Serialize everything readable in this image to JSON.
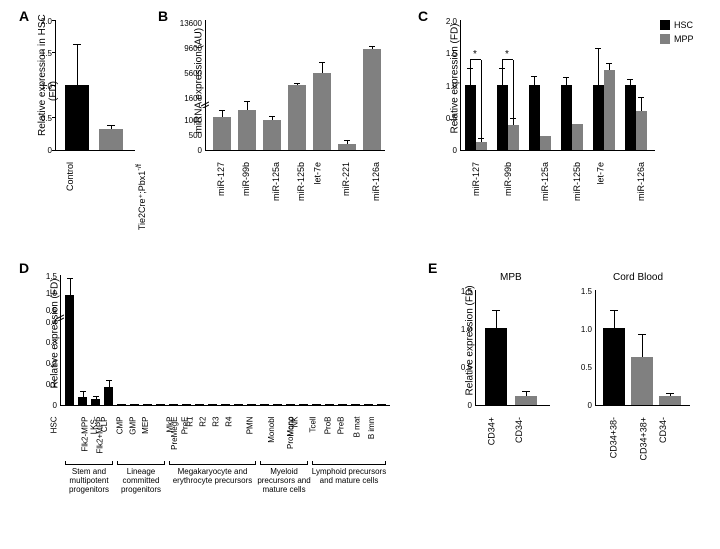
{
  "colors": {
    "black": "#000000",
    "gray": "#808080",
    "white": "#ffffff"
  },
  "panelA": {
    "label": "A",
    "ylabel": "Relative expression in HSC\n(FD)",
    "categories": [
      "Control",
      "Tie2Cre+;Pbx1-/f"
    ],
    "values": [
      1.0,
      0.32
    ],
    "errors": [
      0.62,
      0.05
    ],
    "colors": [
      "#000000",
      "#808080"
    ],
    "ylim": [
      0,
      2.0
    ],
    "yticks": [
      0,
      0.5,
      1.0,
      1.5,
      2.0
    ]
  },
  "panelB": {
    "label": "B",
    "ylabel": "miRNA expression (AU)",
    "categories": [
      "miR-127",
      "miR-99b",
      "miR-125a",
      "miR-125b",
      "let-7e",
      "miR-221",
      "miR-126a"
    ],
    "values": [
      1050,
      1300,
      950,
      3700,
      5600,
      180,
      9400
    ],
    "errors": [
      200,
      250,
      80,
      50,
      1500,
      80,
      200
    ],
    "colors": [
      "#808080",
      "#808080",
      "#808080",
      "#808080",
      "#808080",
      "#808080",
      "#808080"
    ],
    "ylim_lower": [
      0,
      1600
    ],
    "ylim_upper": [
      1600,
      13600
    ],
    "yticks_lower": [
      0,
      500,
      1000
    ],
    "yticks_upper": [
      1600,
      5600,
      9600,
      13600
    ]
  },
  "panelC": {
    "label": "C",
    "ylabel": "Relative expression (FD)",
    "legend": [
      "HSC",
      "MPP"
    ],
    "legend_colors": [
      "#000000",
      "#808080"
    ],
    "categories": [
      "miR-127",
      "miR-99b",
      "miR-125a",
      "miR-125b",
      "let-7e",
      "miR-126a"
    ],
    "hsc_values": [
      1.0,
      1.0,
      1.0,
      1.0,
      1.0,
      1.0
    ],
    "hsc_errors": [
      0.25,
      0.25,
      0.12,
      0.1,
      0.55,
      0.08
    ],
    "mpp_values": [
      0.12,
      0.38,
      0.22,
      0.4,
      1.23,
      0.6
    ],
    "mpp_errors": [
      0.05,
      0.1,
      0,
      0,
      0.1,
      0.2
    ],
    "ylim": [
      0,
      2.0
    ],
    "yticks": [
      0,
      0.5,
      1.0,
      1.5,
      2.0
    ],
    "significance": [
      {
        "group": 0,
        "star": "*"
      },
      {
        "group": 1,
        "star": "*"
      }
    ]
  },
  "panelD": {
    "label": "D",
    "ylabel": "Relative expression (FD)",
    "categories": [
      "HSC",
      "Flk2-MPP",
      "Flk2+MPP",
      "LKS-",
      "CLP",
      "CMP",
      "GMP",
      "MEP",
      "PreMegE",
      "MkP",
      "PreE",
      "R1",
      "R2",
      "R3",
      "R4",
      "PMN",
      "Monobl",
      "ProMono",
      "Mono",
      "NK",
      "Tcell",
      "ProB",
      "PreB",
      "B mat",
      "B imm"
    ],
    "values": [
      1.0,
      0.04,
      0.03,
      0.085,
      0.005,
      0.005,
      0.005,
      0.005,
      0.005,
      0.005,
      0.005,
      0.005,
      0.005,
      0.005,
      0.005,
      0.005,
      0.005,
      0.005,
      0.005,
      0.005,
      0.005,
      0.005,
      0.005,
      0.005,
      0.005
    ],
    "errors": [
      0.4,
      0.02,
      0.01,
      0.03,
      0,
      0,
      0,
      0,
      0,
      0,
      0,
      0,
      0,
      0,
      0,
      0,
      0,
      0,
      0,
      0,
      0,
      0,
      0,
      0,
      0
    ],
    "color": "#000000",
    "ylim_lower": [
      0,
      0.4
    ],
    "ylim_upper": [
      0.4,
      1.5
    ],
    "yticks_lower": [
      0,
      0.1,
      0.2,
      0.3,
      0.4
    ],
    "yticks_upper": [
      0.5,
      1.0,
      1.5
    ],
    "groups": [
      {
        "label": "Stem and multipotent progenitors",
        "range": [
          0,
          3
        ]
      },
      {
        "label": "Lineage committed progenitors",
        "range": [
          4,
          7
        ]
      },
      {
        "label": "Megakaryocyte and erythrocyte precursors",
        "range": [
          8,
          14
        ]
      },
      {
        "label": "Myeloid precursors and mature cells",
        "range": [
          15,
          18
        ]
      },
      {
        "label": "Lymphoid precursors and mature cells",
        "range": [
          19,
          24
        ]
      }
    ]
  },
  "panelE": {
    "label": "E",
    "ylabel": "Relative expression (FD)",
    "sub1": {
      "title": "MPB",
      "categories": [
        "CD34+",
        "CD34-"
      ],
      "values": [
        1.0,
        0.12
      ],
      "errors": [
        0.22,
        0.05
      ],
      "colors": [
        "#000000",
        "#808080"
      ]
    },
    "sub2": {
      "title": "Cord Blood",
      "categories": [
        "CD34+38-",
        "CD34+38+",
        "CD34-"
      ],
      "values": [
        1.0,
        0.62,
        0.12
      ],
      "errors": [
        0.22,
        0.28,
        0.02
      ],
      "colors": [
        "#000000",
        "#808080",
        "#808080"
      ]
    },
    "ylim": [
      0,
      1.5
    ],
    "yticks": [
      0,
      0.5,
      1.0,
      1.5
    ]
  }
}
